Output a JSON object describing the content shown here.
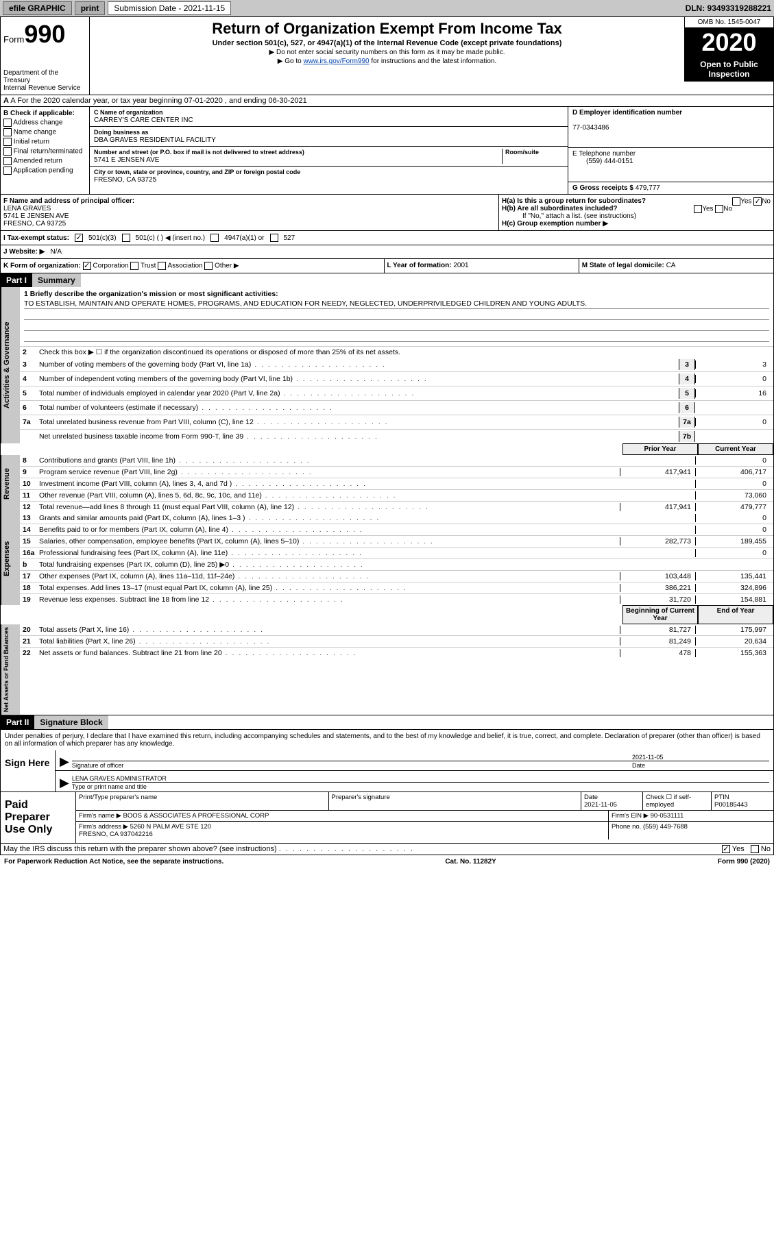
{
  "topbar": {
    "efile": "efile GRAPHIC",
    "print": "print",
    "submission": "Submission Date - 2021-11-15",
    "dln": "DLN: 93493319288221"
  },
  "header": {
    "form_word": "Form",
    "form_num": "990",
    "dept": "Department of the Treasury\nInternal Revenue Service",
    "title": "Return of Organization Exempt From Income Tax",
    "subtitle": "Under section 501(c), 527, or 4947(a)(1) of the Internal Revenue Code (except private foundations)",
    "arrow1": "▶ Do not enter social security numbers on this form as it may be made public.",
    "arrow2_pre": "▶ Go to ",
    "arrow2_link": "www.irs.gov/Form990",
    "arrow2_post": " for instructions and the latest information.",
    "omb": "OMB No. 1545-0047",
    "year": "2020",
    "open": "Open to Public Inspection"
  },
  "rowA": "A For the 2020 calendar year, or tax year beginning 07-01-2020   , and ending 06-30-2021",
  "boxB": {
    "hdr": "B Check if applicable:",
    "opts": [
      "Address change",
      "Name change",
      "Initial return",
      "Final return/terminated",
      "Amended return",
      "Application pending"
    ]
  },
  "boxC": {
    "label": "C Name of organization",
    "name": "CARREY'S CARE CENTER INC",
    "dba_label": "Doing business as",
    "dba": "DBA GRAVES RESIDENTIAL FACILITY",
    "street_label": "Number and street (or P.O. box if mail is not delivered to street address)",
    "room_label": "Room/suite",
    "street": "5741 E JENSEN AVE",
    "city_label": "City or town, state or province, country, and ZIP or foreign postal code",
    "city": "FRESNO, CA  93725"
  },
  "boxD": {
    "label": "D Employer identification number",
    "val": "77-0343486"
  },
  "boxE": {
    "label": "E Telephone number",
    "val": "(559) 444-0151"
  },
  "boxG": {
    "label": "G Gross receipts $",
    "val": "479,777"
  },
  "boxF": {
    "label": "F Name and address of principal officer:",
    "name": "LENA GRAVES",
    "addr1": "5741 E JENSEN AVE",
    "addr2": "FRESNO, CA  93725"
  },
  "boxH": {
    "ha": "H(a)  Is this a group return for subordinates?",
    "hb": "H(b)  Are all subordinates included?",
    "hb_note": "If \"No,\" attach a list. (see instructions)",
    "hc": "H(c)  Group exemption number ▶"
  },
  "taxI": {
    "label": "I   Tax-exempt status:",
    "o1": "501(c)(3)",
    "o2": "501(c) (  ) ◀ (insert no.)",
    "o3": "4947(a)(1) or",
    "o4": "527"
  },
  "webJ": {
    "label": "J   Website: ▶",
    "val": "N/A"
  },
  "korg": {
    "label": "K Form of organization:",
    "o1": "Corporation",
    "o2": "Trust",
    "o3": "Association",
    "o4": "Other ▶"
  },
  "boxL": {
    "label": "L Year of formation:",
    "val": "2001"
  },
  "boxM": {
    "label": "M State of legal domicile:",
    "val": "CA"
  },
  "part1": {
    "hdr": "Part I",
    "title": "Summary",
    "line1_label": "1  Briefly describe the organization's mission or most significant activities:",
    "mission": "TO ESTABLISH, MAINTAIN AND OPERATE HOMES, PROGRAMS, AND EDUCATION FOR NEEDY, NEGLECTED, UNDERPRIVILEDGED CHILDREN AND YOUNG ADULTS.",
    "line2": "Check this box ▶ ☐  if the organization discontinued its operations or disposed of more than 25% of its net assets.",
    "sections": {
      "gov": "Activities & Governance",
      "rev": "Revenue",
      "exp": "Expenses",
      "net": "Net Assets or Fund Balances"
    },
    "col_prior": "Prior Year",
    "col_curr": "Current Year",
    "col_beg": "Beginning of Current Year",
    "col_end": "End of Year",
    "yes": "Yes",
    "no": "No",
    "gov_lines": [
      {
        "n": "3",
        "t": "Number of voting members of the governing body (Part VI, line 1a)",
        "box": "3",
        "v": "3"
      },
      {
        "n": "4",
        "t": "Number of independent voting members of the governing body (Part VI, line 1b)",
        "box": "4",
        "v": "0"
      },
      {
        "n": "5",
        "t": "Total number of individuals employed in calendar year 2020 (Part V, line 2a)",
        "box": "5",
        "v": "16"
      },
      {
        "n": "6",
        "t": "Total number of volunteers (estimate if necessary)",
        "box": "6",
        "v": ""
      },
      {
        "n": "7a",
        "t": "Total unrelated business revenue from Part VIII, column (C), line 12",
        "box": "7a",
        "v": "0"
      },
      {
        "n": "",
        "t": "Net unrelated business taxable income from Form 990-T, line 39",
        "box": "7b",
        "v": ""
      }
    ],
    "rev_lines": [
      {
        "n": "8",
        "t": "Contributions and grants (Part VIII, line 1h)",
        "p": "",
        "c": "0"
      },
      {
        "n": "9",
        "t": "Program service revenue (Part VIII, line 2g)",
        "p": "417,941",
        "c": "406,717"
      },
      {
        "n": "10",
        "t": "Investment income (Part VIII, column (A), lines 3, 4, and 7d )",
        "p": "",
        "c": "0"
      },
      {
        "n": "11",
        "t": "Other revenue (Part VIII, column (A), lines 5, 6d, 8c, 9c, 10c, and 11e)",
        "p": "",
        "c": "73,060"
      },
      {
        "n": "12",
        "t": "Total revenue—add lines 8 through 11 (must equal Part VIII, column (A), line 12)",
        "p": "417,941",
        "c": "479,777"
      }
    ],
    "exp_lines": [
      {
        "n": "13",
        "t": "Grants and similar amounts paid (Part IX, column (A), lines 1–3 )",
        "p": "",
        "c": "0"
      },
      {
        "n": "14",
        "t": "Benefits paid to or for members (Part IX, column (A), line 4)",
        "p": "",
        "c": "0"
      },
      {
        "n": "15",
        "t": "Salaries, other compensation, employee benefits (Part IX, column (A), lines 5–10)",
        "p": "282,773",
        "c": "189,455"
      },
      {
        "n": "16a",
        "t": "Professional fundraising fees (Part IX, column (A), line 11e)",
        "p": "",
        "c": "0"
      },
      {
        "n": "b",
        "t": "Total fundraising expenses (Part IX, column (D), line 25) ▶0",
        "p": "shade",
        "c": "shade"
      },
      {
        "n": "17",
        "t": "Other expenses (Part IX, column (A), lines 11a–11d, 11f–24e)",
        "p": "103,448",
        "c": "135,441"
      },
      {
        "n": "18",
        "t": "Total expenses. Add lines 13–17 (must equal Part IX, column (A), line 25)",
        "p": "386,221",
        "c": "324,896"
      },
      {
        "n": "19",
        "t": "Revenue less expenses. Subtract line 18 from line 12",
        "p": "31,720",
        "c": "154,881"
      }
    ],
    "net_lines": [
      {
        "n": "20",
        "t": "Total assets (Part X, line 16)",
        "p": "81,727",
        "c": "175,997"
      },
      {
        "n": "21",
        "t": "Total liabilities (Part X, line 26)",
        "p": "81,249",
        "c": "20,634"
      },
      {
        "n": "22",
        "t": "Net assets or fund balances. Subtract line 21 from line 20",
        "p": "478",
        "c": "155,363"
      }
    ]
  },
  "part2": {
    "hdr": "Part II",
    "title": "Signature Block",
    "decl": "Under penalties of perjury, I declare that I have examined this return, including accompanying schedules and statements, and to the best of my knowledge and belief, it is true, correct, and complete. Declaration of preparer (other than officer) is based on all information of which preparer has any knowledge.",
    "sign_here": "Sign Here",
    "sig_officer": "Signature of officer",
    "sig_date": "Date",
    "sig_date_val": "2021-11-05",
    "officer_name": "LENA GRAVES  ADMINISTRATOR",
    "type_name": "Type or print name and title",
    "paid_prep": "Paid Preparer Use Only",
    "prep_name_label": "Print/Type preparer's name",
    "prep_sig_label": "Preparer's signature",
    "prep_date_label": "Date",
    "prep_date": "2021-11-05",
    "check_self": "Check ☐ if self-employed",
    "ptin_label": "PTIN",
    "ptin": "P00185443",
    "firm_name_label": "Firm's name    ▶",
    "firm_name": "BOOS & ASSOCIATES A PROFESSIONAL CORP",
    "firm_ein_label": "Firm's EIN ▶",
    "firm_ein": "90-0531111",
    "firm_addr_label": "Firm's address ▶",
    "firm_addr": "5260 N PALM AVE STE 120\nFRESNO, CA  937042216",
    "phone_label": "Phone no.",
    "phone": "(559) 449-7688",
    "may_irs": "May the IRS discuss this return with the preparer shown above? (see instructions)"
  },
  "footer": {
    "pra": "For Paperwork Reduction Act Notice, see the separate instructions.",
    "cat": "Cat. No. 11282Y",
    "form": "Form 990 (2020)"
  }
}
